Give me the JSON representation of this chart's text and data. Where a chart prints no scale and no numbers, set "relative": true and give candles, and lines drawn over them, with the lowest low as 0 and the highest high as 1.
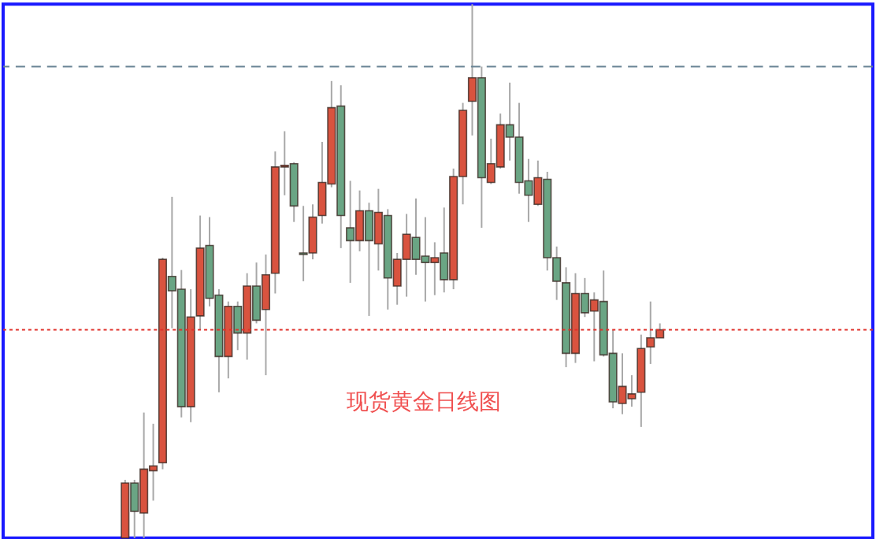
{
  "chart_data": {
    "type": "candlestick",
    "title": "现货黄金日线图",
    "relative": true,
    "categories": [
      null,
      null,
      null,
      null,
      null,
      null,
      null,
      null,
      null,
      null,
      null,
      null,
      null,
      null,
      null,
      null,
      null,
      null,
      null,
      null,
      null,
      null,
      null,
      null,
      null,
      null,
      null,
      null,
      null,
      null,
      null,
      null,
      null,
      null,
      null,
      null,
      null,
      null,
      null,
      null,
      null,
      null,
      null,
      null,
      null,
      null,
      null,
      null,
      null,
      null,
      null,
      null,
      null,
      null,
      null,
      null,
      null,
      null
    ],
    "ohlc": [
      [
        0,
        0.109,
        0,
        0.103
      ],
      [
        0.103,
        0.109,
        0,
        0.05
      ],
      [
        0.047,
        0.235,
        0,
        0.129
      ],
      [
        0.126,
        0.214,
        0.07,
        0.135
      ],
      [
        0.141,
        0.525,
        0.129,
        0.522
      ],
      [
        0.49,
        0.639,
        0.393,
        0.463
      ],
      [
        0.466,
        0.502,
        0.226,
        0.246
      ],
      [
        0.246,
        0.466,
        0.217,
        0.414
      ],
      [
        0.416,
        0.604,
        0.39,
        0.543
      ],
      [
        0.548,
        0.601,
        0.434,
        0.449
      ],
      [
        0.455,
        0.466,
        0.273,
        0.34
      ],
      [
        0.34,
        0.443,
        0.299,
        0.434
      ],
      [
        0.434,
        0.443,
        0.352,
        0.384
      ],
      [
        0.384,
        0.496,
        0.334,
        0.472
      ],
      [
        0.472,
        0.516,
        0.402,
        0.408
      ],
      [
        0.428,
        0.531,
        0.305,
        0.493
      ],
      [
        0.496,
        0.724,
        0.458,
        0.695
      ],
      [
        0.695,
        0.762,
        0.642,
        0.698
      ],
      [
        0.701,
        0.704,
        0.592,
        0.622
      ],
      [
        0.534,
        0.622,
        0.481,
        0.531
      ],
      [
        0.534,
        0.625,
        0.522,
        0.601
      ],
      [
        0.604,
        0.742,
        0.589,
        0.666
      ],
      [
        0.663,
        0.856,
        0.657,
        0.806
      ],
      [
        0.809,
        0.848,
        0.543,
        0.604
      ],
      [
        0.581,
        0.669,
        0.478,
        0.557
      ],
      [
        0.557,
        0.651,
        0.537,
        0.613
      ],
      [
        0.613,
        0.628,
        0.416,
        0.557
      ],
      [
        0.551,
        0.654,
        0.501,
        0.61
      ],
      [
        0.604,
        0.616,
        0.428,
        0.487
      ],
      [
        0.472,
        0.534,
        0.437,
        0.522
      ],
      [
        0.522,
        0.607,
        0.452,
        0.569
      ],
      [
        0.563,
        0.636,
        0.493,
        0.522
      ],
      [
        0.528,
        0.601,
        0.443,
        0.516
      ],
      [
        0.516,
        0.554,
        0.455,
        0.525
      ],
      [
        0.534,
        0.619,
        0.46,
        0.484
      ],
      [
        0.484,
        0.692,
        0.466,
        0.677
      ],
      [
        0.677,
        0.815,
        0.625,
        0.801
      ],
      [
        0.818,
        1,
        0.754,
        0.862
      ],
      [
        0.862,
        0.883,
        0.581,
        0.675
      ],
      [
        0.666,
        0.748,
        0.663,
        0.701
      ],
      [
        0.695,
        0.795,
        0.692,
        0.774
      ],
      [
        0.774,
        0.853,
        0.707,
        0.751
      ],
      [
        0.751,
        0.815,
        0.645,
        0.666
      ],
      [
        0.669,
        0.71,
        0.592,
        0.642
      ],
      [
        0.625,
        0.707,
        0.622,
        0.675
      ],
      [
        0.672,
        0.686,
        0.501,
        0.525
      ],
      [
        0.525,
        0.546,
        0.446,
        0.481
      ],
      [
        0.478,
        0.507,
        0.32,
        0.346
      ],
      [
        0.346,
        0.496,
        0.328,
        0.458
      ],
      [
        0.458,
        0.487,
        0.414,
        0.422
      ],
      [
        0.425,
        0.46,
        0.331,
        0.446
      ],
      [
        0.443,
        0.501,
        0.34,
        0.343
      ],
      [
        0.346,
        0.39,
        0.243,
        0.255
      ],
      [
        0.252,
        0.346,
        0.232,
        0.284
      ],
      [
        0.261,
        0.305,
        0.246,
        0.27
      ],
      [
        0.273,
        0.381,
        0.208,
        0.355
      ],
      [
        0.358,
        0.443,
        0.326,
        0.375
      ],
      [
        0.375,
        0.402,
        0.375,
        0.39
      ]
    ],
    "colors": [
      "#d9533f",
      "#6aa584",
      "#d9533f",
      "#d9533f",
      "#d9533f",
      "#6aa584",
      "#6aa584",
      "#d9533f",
      "#d9533f",
      "#6aa584",
      "#6aa584",
      "#d9533f",
      "#6aa584",
      "#d9533f",
      "#6aa584",
      "#d9533f",
      "#d9533f",
      "#d9533f",
      "#6aa584",
      "#6aa584",
      "#d9533f",
      "#d9533f",
      "#d9533f",
      "#6aa584",
      "#6aa584",
      "#d9533f",
      "#6aa584",
      "#d9533f",
      "#6aa584",
      "#d9533f",
      "#d9533f",
      "#6aa584",
      "#6aa584",
      "#d9533f",
      "#6aa584",
      "#d9533f",
      "#d9533f",
      "#d9533f",
      "#6aa584",
      "#d9533f",
      "#d9533f",
      "#6aa584",
      "#6aa584",
      "#6aa584",
      "#d9533f",
      "#6aa584",
      "#6aa584",
      "#6aa584",
      "#d9533f",
      "#6aa584",
      "#d9533f",
      "#6aa584",
      "#6aa584",
      "#d9533f",
      "#d9533f",
      "#d9533f",
      "#d9533f",
      "#d9533f"
    ],
    "ref_lines": [
      {
        "axis": "y",
        "value": 0.883,
        "color": "#6a8596",
        "line_style": "dashed"
      },
      {
        "axis": "y",
        "value": 0.39,
        "color": "#e0302a",
        "line_style": "dotted"
      }
    ]
  }
}
